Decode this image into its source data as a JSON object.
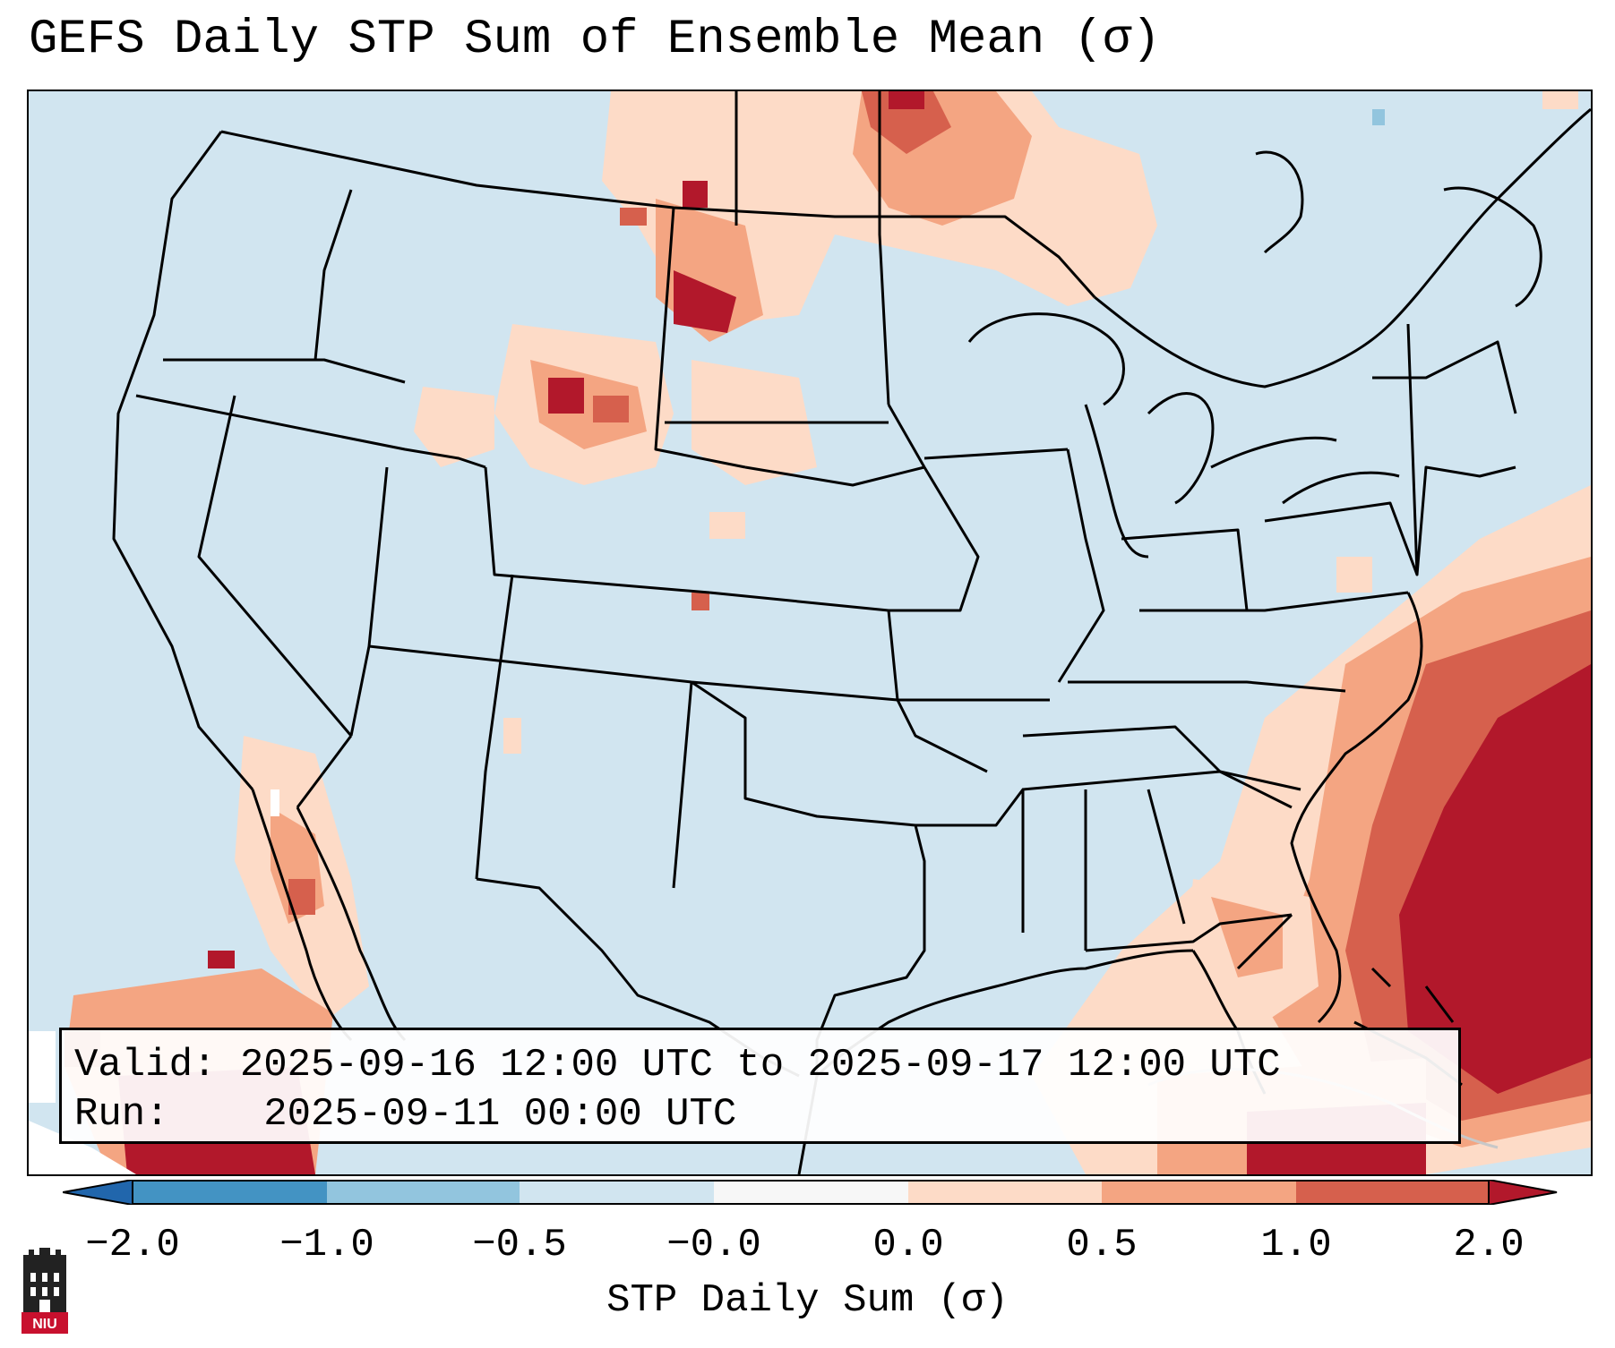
{
  "title": "GEFS Daily STP Sum of Ensemble Mean (σ)",
  "info": {
    "valid_label": "Valid:",
    "valid_value": "2025-09-16 12:00 UTC to 2025-09-17 12:00 UTC",
    "run_label": "Run:",
    "run_value": "2025-09-11 00:00 UTC"
  },
  "colorbar": {
    "label": "STP Daily Sum (σ)",
    "ticks": [
      "−2.0",
      "−1.0",
      "−0.5",
      "−0.0",
      "0.0",
      "0.5",
      "1.0",
      "2.0"
    ],
    "colors": {
      "extend_low": "#2166ac",
      "b1": "#4393c3",
      "b2": "#92c5de",
      "b3": "#d1e5f0",
      "b4": "#f7f7f7",
      "b5": "#fddbc7",
      "b6": "#f4a582",
      "b7": "#d6604d",
      "extend_high": "#b2182b"
    }
  },
  "map_colors": {
    "background": "#d1e5f0",
    "land_lines": "#000000",
    "faint_lines": "#c8c8c8"
  },
  "logo_text": "NIU"
}
